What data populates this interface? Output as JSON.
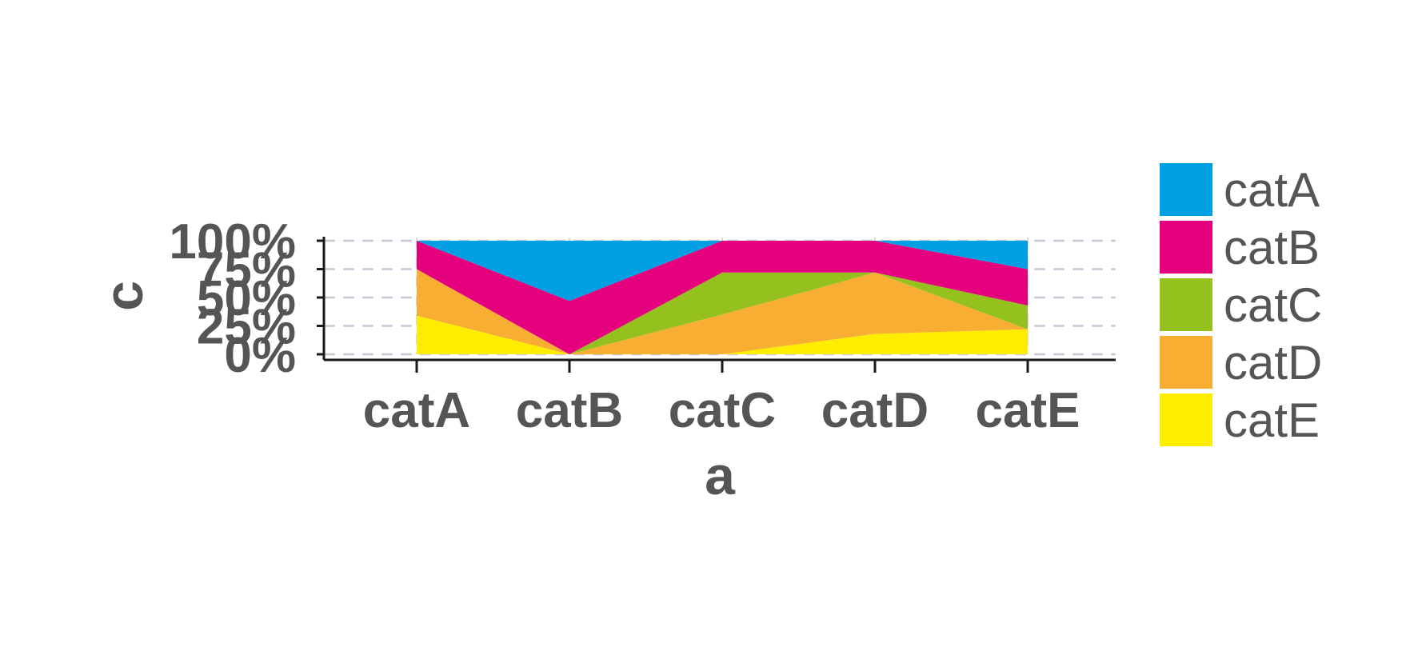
{
  "chart_data": {
    "type": "area",
    "stacking": "percent",
    "categories": [
      "catA",
      "catB",
      "catC",
      "catD",
      "catE"
    ],
    "series": [
      {
        "name": "catA",
        "color": "#009FE3",
        "values": [
          0,
          53,
          0,
          0,
          25
        ]
      },
      {
        "name": "catB",
        "color": "#E5007E",
        "values": [
          25,
          47,
          28,
          28,
          32
        ]
      },
      {
        "name": "catC",
        "color": "#95C11F",
        "values": [
          0,
          0,
          37,
          0,
          21
        ]
      },
      {
        "name": "catD",
        "color": "#F8AE33",
        "values": [
          41,
          0,
          35,
          54,
          0
        ]
      },
      {
        "name": "catE",
        "color": "#FFED00",
        "values": [
          34,
          0,
          0,
          18,
          22
        ]
      }
    ],
    "xlabel": "a",
    "ylabel": "c",
    "ylim": [
      0,
      100
    ],
    "yticks": [
      "0%",
      "25%",
      "50%",
      "75%",
      "100%"
    ],
    "grid": "horizontal dashed",
    "legend_position": "right"
  }
}
